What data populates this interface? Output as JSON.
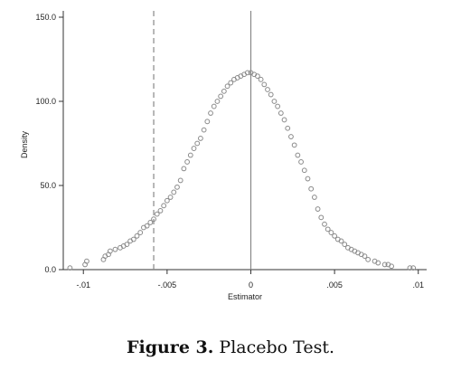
{
  "caption": {
    "label": "Figure 3.",
    "text": "Placebo Test."
  },
  "chart_data": {
    "type": "scatter",
    "xlabel": "Estimator",
    "ylabel": "Density",
    "xlim": [
      -0.0112,
      0.0105
    ],
    "ylim": [
      0,
      150
    ],
    "xticks": [
      {
        "value": -0.01,
        "label": "-.01"
      },
      {
        "value": -0.005,
        "label": "-.005"
      },
      {
        "value": 0,
        "label": "0"
      },
      {
        "value": 0.005,
        "label": ".005"
      },
      {
        "value": 0.01,
        "label": ".01"
      }
    ],
    "yticks": [
      {
        "value": 0,
        "label": "0.0"
      },
      {
        "value": 50,
        "label": "50.0"
      },
      {
        "value": 100,
        "label": "100.0"
      },
      {
        "value": 150,
        "label": "150.0"
      }
    ],
    "reference_lines": [
      {
        "x": -0.0058,
        "style": "dashed"
      },
      {
        "x": 0,
        "style": "solid"
      }
    ],
    "grid": false,
    "marker_color": "#8a8a8a",
    "line_color": "#888888",
    "series": [
      {
        "x": [
          -0.0108,
          -0.0099,
          -0.0098,
          -0.0088,
          -0.0087,
          -0.0085,
          -0.0084,
          -0.0081,
          -0.0078,
          -0.0076,
          -0.0074,
          -0.0072,
          -0.007,
          -0.0068,
          -0.0066,
          -0.0064,
          -0.0062,
          -0.006,
          -0.0058,
          -0.0056,
          -0.0054,
          -0.0052,
          -0.005,
          -0.0048,
          -0.0046,
          -0.0044,
          -0.0042,
          -0.004,
          -0.0038,
          -0.0036,
          -0.0034,
          -0.0032,
          -0.003,
          -0.0028,
          -0.0026,
          -0.0024,
          -0.0022,
          -0.002,
          -0.0018,
          -0.0016,
          -0.0014,
          -0.0012,
          -0.001,
          -0.0008,
          -0.0006,
          -0.0004,
          -0.0002,
          0,
          0.0002,
          0.0004,
          0.0006,
          0.0008,
          0.001,
          0.0012,
          0.0014,
          0.0016,
          0.0018,
          0.002,
          0.0022,
          0.0024,
          0.0026,
          0.0028,
          0.003,
          0.0032,
          0.0034,
          0.0036,
          0.0038,
          0.004,
          0.0042,
          0.0044,
          0.0046,
          0.0048,
          0.005,
          0.0052,
          0.0054,
          0.0056,
          0.0058,
          0.006,
          0.0062,
          0.0064,
          0.0066,
          0.0068,
          0.007,
          0.0074,
          0.0076,
          0.008,
          0.0082,
          0.0084,
          0.0095,
          0.0097
        ],
        "y": [
          1,
          3,
          5,
          6,
          8,
          9,
          11,
          12,
          13,
          14,
          15,
          17,
          18,
          20,
          22,
          25,
          26,
          28,
          30,
          33,
          35,
          38,
          41,
          43,
          46,
          49,
          53,
          60,
          64,
          68,
          72,
          75,
          78,
          83,
          88,
          93,
          97,
          100,
          103,
          106,
          109,
          111,
          113,
          114,
          115,
          116,
          117,
          117,
          116,
          115,
          113,
          110,
          107,
          104,
          100,
          97,
          93,
          89,
          84,
          79,
          74,
          68,
          64,
          59,
          54,
          48,
          43,
          36,
          31,
          27,
          24,
          22,
          20,
          18,
          17,
          15,
          13,
          12,
          11,
          10,
          9,
          8,
          6,
          5,
          4,
          3,
          3,
          2,
          1,
          1
        ]
      }
    ]
  }
}
